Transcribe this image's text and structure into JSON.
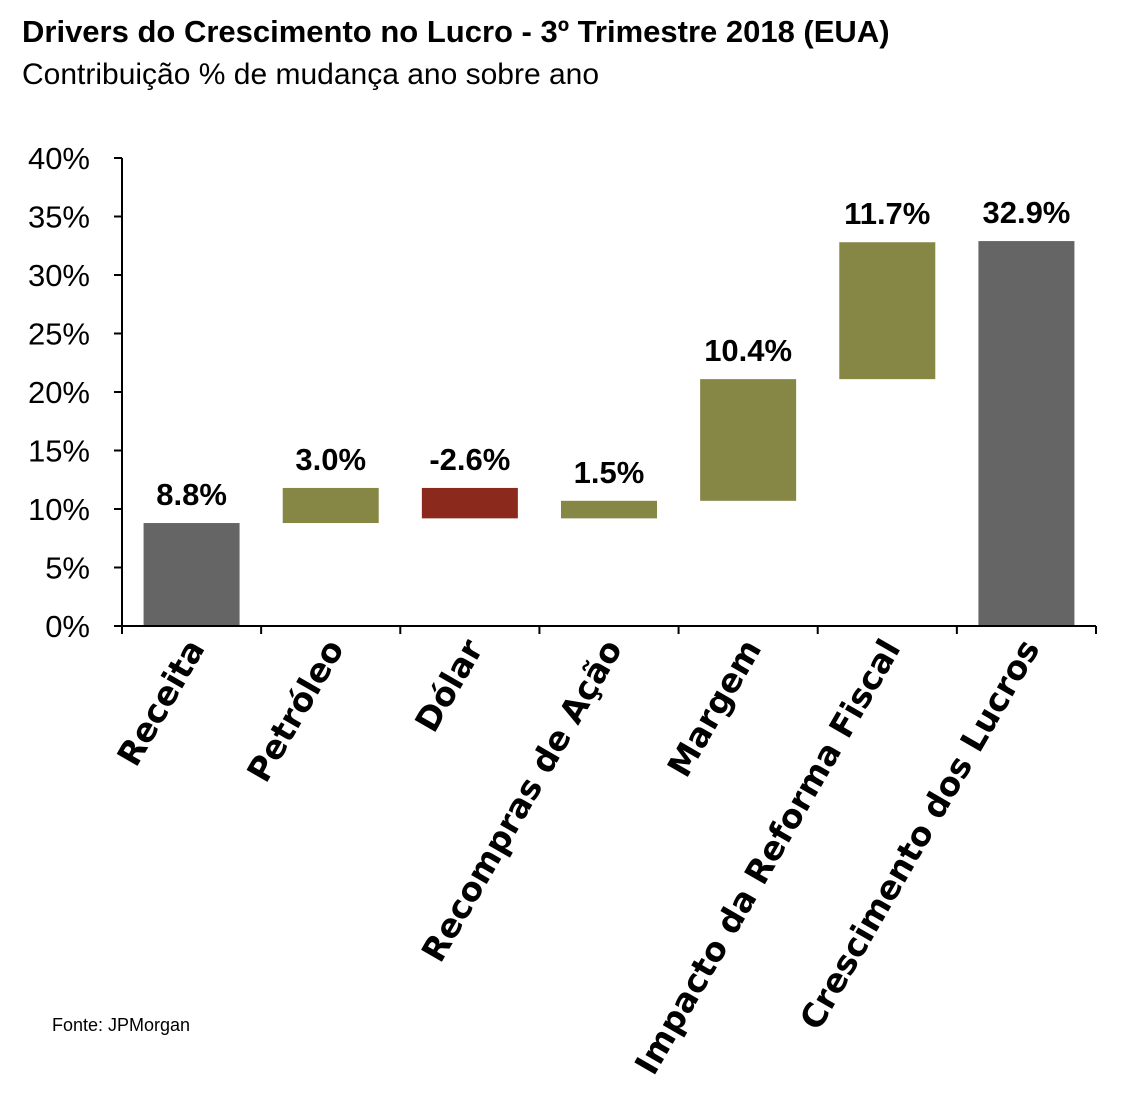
{
  "title": "Drivers do Crescimento no Lucro - 3º Trimestre 2018 (EUA)",
  "subtitle": "Contribuição % de mudança ano sobre ano",
  "source": "Fonte: JPMorgan",
  "colors": {
    "total": "#656565",
    "increase": "#868645",
    "decrease": "#8b2a1c",
    "axis": "#000000"
  },
  "chart_data": {
    "type": "bar",
    "subtype": "waterfall",
    "categories": [
      "Receita",
      "Petróleo",
      "Dólar",
      "Recompras de Ação",
      "Margem",
      "Impacto da Reforma Fiscal",
      "Crescimento dos Lucros"
    ],
    "values": [
      8.8,
      3.0,
      -2.6,
      1.5,
      10.4,
      11.7,
      32.9
    ],
    "kinds": [
      "total",
      "increase",
      "decrease",
      "increase",
      "increase",
      "increase",
      "total"
    ],
    "data_labels": [
      "8.8%",
      "3.0%",
      "-2.6%",
      "1.5%",
      "10.4%",
      "11.7%",
      "32.9%"
    ],
    "ylim": [
      0,
      40
    ],
    "yticks": [
      0,
      5,
      10,
      15,
      20,
      25,
      30,
      35,
      40
    ],
    "ytick_labels": [
      "0%",
      "5%",
      "10%",
      "15%",
      "20%",
      "25%",
      "30%",
      "35%",
      "40%"
    ],
    "grid": false,
    "legend": "none"
  }
}
